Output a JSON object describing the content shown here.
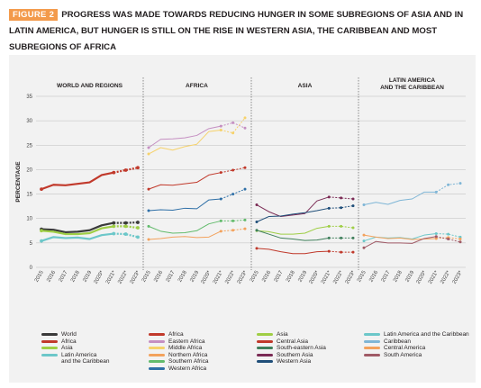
{
  "header": {
    "figure_tag": "FIGURE 2",
    "title": "PROGRESS WAS MADE TOWARDS REDUCING HUNGER IN SOME SUBREGIONS OF ASIA AND IN LATIN AMERICA, BUT HUNGER IS STILL ON THE RISE IN WESTERN ASIA, THE CARIBBEAN AND MOST SUBREGIONS OF AFRICA"
  },
  "chart_data": {
    "type": "line",
    "ylabel": "PERCENTAGE",
    "ylim": [
      0,
      35
    ],
    "yticks": [
      0,
      5,
      10,
      15,
      20,
      25,
      30,
      35
    ],
    "x": [
      "2015",
      "2016",
      "2017",
      "2018",
      "2019",
      "2020*",
      "2021*",
      "2022*",
      "2023*"
    ],
    "projected_from_index": 7,
    "grid": true,
    "panels": [
      {
        "title": "WORLD AND REGIONS",
        "series": [
          {
            "name": "World",
            "color": "#3a3a3a",
            "values": [
              7.8,
              7.7,
              7.2,
              7.3,
              7.6,
              8.6,
              9.1,
              9.1,
              9.2
            ]
          },
          {
            "name": "Africa",
            "color": "#c1392b",
            "values": [
              16.0,
              16.9,
              16.8,
              17.1,
              17.4,
              18.9,
              19.4,
              19.9,
              20.4
            ]
          },
          {
            "name": "Asia",
            "color": "#9fce45",
            "values": [
              7.5,
              7.3,
              6.8,
              6.8,
              7.0,
              8.0,
              8.4,
              8.4,
              8.1
            ]
          },
          {
            "name": "Latin America and the Caribbean",
            "color": "#6cc7c9",
            "values": [
              5.4,
              6.2,
              6.0,
              6.1,
              5.8,
              6.6,
              6.9,
              6.8,
              6.2
            ]
          }
        ]
      },
      {
        "title": "AFRICA",
        "series": [
          {
            "name": "Africa",
            "color": "#c1392b",
            "values": [
              16.0,
              16.9,
              16.8,
              17.1,
              17.4,
              18.9,
              19.4,
              19.9,
              20.4
            ]
          },
          {
            "name": "Eastern Africa",
            "color": "#c58fc2",
            "values": [
              24.5,
              26.2,
              26.3,
              26.5,
              27.0,
              28.4,
              28.9,
              29.6,
              28.5
            ]
          },
          {
            "name": "Middle Africa",
            "color": "#f6d26b",
            "values": [
              23.2,
              24.5,
              24.0,
              24.7,
              25.2,
              27.8,
              28.1,
              27.5,
              30.6
            ]
          },
          {
            "name": "Northern Africa",
            "color": "#f3a25d",
            "values": [
              5.7,
              5.9,
              6.2,
              6.3,
              6.1,
              6.2,
              7.4,
              7.6,
              7.9
            ]
          },
          {
            "name": "Southern Africa",
            "color": "#62bb6c",
            "values": [
              8.4,
              7.4,
              7.0,
              7.1,
              7.5,
              8.9,
              9.5,
              9.5,
              9.7
            ]
          },
          {
            "name": "Western Africa",
            "color": "#2e6fa7",
            "values": [
              11.6,
              11.8,
              11.7,
              12.1,
              12.0,
              13.8,
              14.0,
              15.0,
              16.0
            ]
          }
        ]
      },
      {
        "title": "ASIA",
        "series": [
          {
            "name": "Asia",
            "color": "#9fce45",
            "values": [
              7.5,
              7.3,
              6.8,
              6.8,
              7.0,
              8.0,
              8.4,
              8.4,
              8.1
            ]
          },
          {
            "name": "Central Asia",
            "color": "#c0392b",
            "values": [
              3.9,
              3.7,
              3.2,
              2.8,
              2.8,
              3.2,
              3.3,
              3.1,
              3.1
            ]
          },
          {
            "name": "South-eastern Asia",
            "color": "#3f7f5b",
            "values": [
              7.6,
              6.8,
              6.0,
              5.8,
              5.5,
              5.6,
              6.0,
              6.0,
              6.0
            ]
          },
          {
            "name": "Southern Asia",
            "color": "#7b2b55",
            "values": [
              12.8,
              11.4,
              10.4,
              10.7,
              11.0,
              13.6,
              14.4,
              14.2,
              14.0
            ]
          },
          {
            "name": "Western Asia",
            "color": "#1f4e79",
            "values": [
              9.3,
              10.4,
              10.5,
              10.9,
              11.2,
              11.6,
              12.1,
              12.2,
              12.6
            ]
          }
        ]
      },
      {
        "title": "LATIN AMERICA AND THE CARIBBEAN",
        "title_lines": [
          "LATIN AMERICA",
          "AND THE CARIBBEAN"
        ],
        "series": [
          {
            "name": "Latin America and the Caribbean",
            "color": "#6cc7c9",
            "values": [
              5.4,
              6.2,
              6.0,
              6.1,
              5.8,
              6.6,
              6.9,
              6.8,
              6.2
            ]
          },
          {
            "name": "Caribbean",
            "color": "#7fb6d6",
            "values": [
              12.8,
              13.3,
              12.9,
              13.7,
              14.0,
              15.4,
              15.4,
              16.9,
              17.2
            ]
          },
          {
            "name": "Central America",
            "color": "#f3a25d",
            "values": [
              6.6,
              6.2,
              5.9,
              6.0,
              5.7,
              5.8,
              5.9,
              6.1,
              5.8
            ]
          },
          {
            "name": "South America",
            "color": "#a05a66",
            "values": [
              4.0,
              5.3,
              5.0,
              5.0,
              4.9,
              5.9,
              6.3,
              5.8,
              5.2
            ]
          }
        ]
      }
    ]
  },
  "legend": {
    "columns": [
      [
        {
          "label": "World",
          "color": "#3a3a3a"
        },
        {
          "label": "Africa",
          "color": "#c1392b"
        },
        {
          "label": "Asia",
          "color": "#9fce45"
        },
        {
          "label": "Latin America",
          "label2": "and the Caribbean",
          "color": "#6cc7c9"
        }
      ],
      [
        {
          "label": "Africa",
          "color": "#c1392b"
        },
        {
          "label": "Eastern Africa",
          "color": "#c58fc2"
        },
        {
          "label": "Middle Africa",
          "color": "#f6d26b"
        },
        {
          "label": "Northern Africa",
          "color": "#f3a25d"
        },
        {
          "label": "Southern Africa",
          "color": "#62bb6c"
        },
        {
          "label": "Western Africa",
          "color": "#2e6fa7"
        }
      ],
      [
        {
          "label": "Asia",
          "color": "#9fce45"
        },
        {
          "label": "Central Asia",
          "color": "#c0392b"
        },
        {
          "label": "South-eastern Asia",
          "color": "#3f7f5b"
        },
        {
          "label": "Southern Asia",
          "color": "#7b2b55"
        },
        {
          "label": "Western Asia",
          "color": "#1f4e79"
        }
      ],
      [
        {
          "label": "Latin America and the Caribbean",
          "color": "#6cc7c9"
        },
        {
          "label": "Caribbean",
          "color": "#7fb6d6"
        },
        {
          "label": "Central America",
          "color": "#f3a25d"
        },
        {
          "label": "South America",
          "color": "#a05a66"
        }
      ]
    ]
  }
}
